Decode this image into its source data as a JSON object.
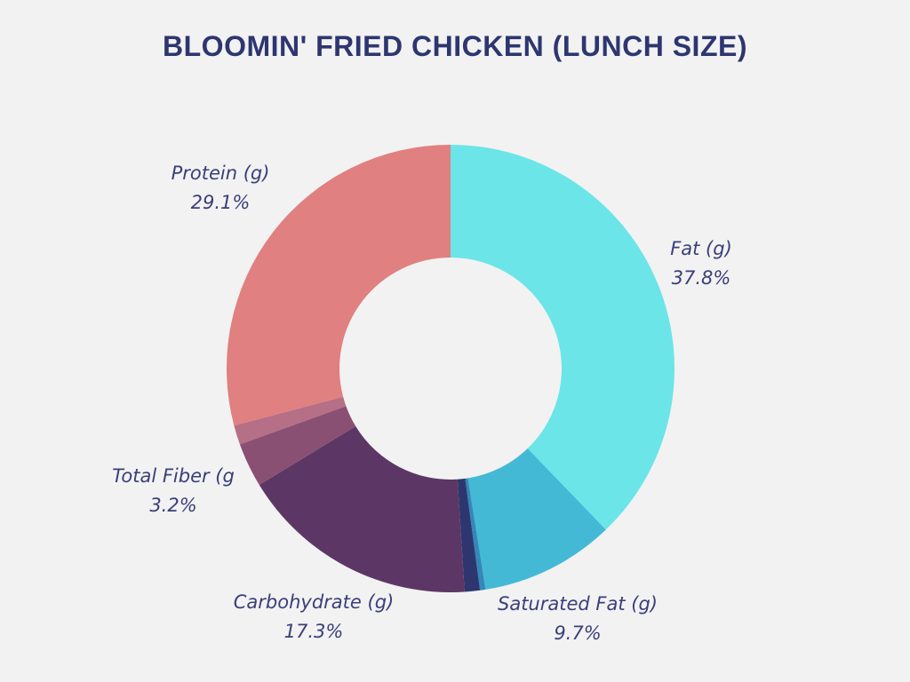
{
  "title": "BLOOMIN' FRIED CHICKEN (LUNCH SIZE)",
  "chart_data": {
    "type": "pie",
    "title": "BLOOMIN' FRIED CHICKEN (LUNCH SIZE)",
    "donut": true,
    "slices": [
      {
        "name": "Fat (g)",
        "value": 37.8,
        "label": "37.8%",
        "color": "#6be5e8",
        "labeled": true
      },
      {
        "name": "Saturated Fat (g)",
        "value": 9.7,
        "label": "9.7%",
        "color": "#44b9d6",
        "labeled": true
      },
      {
        "name": "",
        "value": 0.4,
        "label": "",
        "color": "#3388b8",
        "labeled": false
      },
      {
        "name": "",
        "value": 1.1,
        "label": "",
        "color": "#2e3670",
        "labeled": false
      },
      {
        "name": "Carbohydrate (g)",
        "value": 17.3,
        "label": "17.3%",
        "color": "#5c3766",
        "labeled": true
      },
      {
        "name": "Total Fiber (g",
        "value": 3.2,
        "label": "3.2%",
        "color": "#8a5073",
        "labeled": true
      },
      {
        "name": "",
        "value": 1.4,
        "label": "",
        "color": "#b56f87",
        "labeled": false
      },
      {
        "name": "Protein (g)",
        "value": 29.1,
        "label": "29.1%",
        "color": "#e08080",
        "labeled": true
      }
    ]
  }
}
